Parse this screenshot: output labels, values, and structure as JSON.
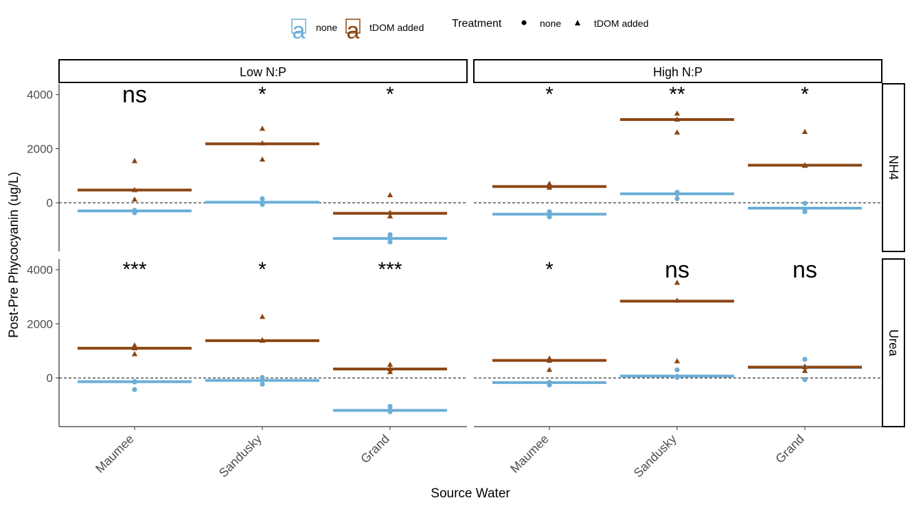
{
  "chart_data": {
    "type": "scatter",
    "xlabel": "Source Water",
    "ylabel": "Post-Pre Phycocyanin (ug/L)",
    "categories": [
      "Maumee",
      "Sandusky",
      "Grand"
    ],
    "yticks": [
      "0",
      "2000",
      "4000"
    ],
    "ylim": [
      -1800,
      4400
    ],
    "reference_line": 0,
    "col_facets": [
      "Low N:P",
      "High N:P"
    ],
    "row_facets": [
      "NH4",
      "Urea"
    ],
    "colors": {
      "none": "#6BAED6",
      "tDOM added": "#8B4513"
    },
    "legend": {
      "color_entries": [
        "none",
        "tDOM added"
      ],
      "color_key_glyph": "a",
      "shape_title": "Treatment",
      "shape_entries": [
        "none",
        "tDOM added"
      ],
      "placement": "top"
    },
    "panels": [
      {
        "col": "Low N:P",
        "row": "NH4",
        "groups": [
          {
            "category": "Maumee",
            "signif": "ns",
            "none": {
              "mean": -300,
              "points": [
                -280,
                -330,
                -370
              ]
            },
            "tdom": {
              "mean": 470,
              "points": [
                1540,
                470,
                120
              ]
            }
          },
          {
            "category": "Sandusky",
            "signif": "*",
            "none": {
              "mean": 20,
              "points": [
                150,
                -20,
                -60
              ]
            },
            "tdom": {
              "mean": 2180,
              "points": [
                2740,
                2200,
                1600
              ]
            }
          },
          {
            "category": "Grand",
            "signif": "*",
            "none": {
              "mean": -1320,
              "points": [
                -1180,
                -1300,
                -1450
              ]
            },
            "tdom": {
              "mean": -390,
              "points": [
                280,
                -370,
                -500
              ]
            }
          }
        ]
      },
      {
        "col": "High N:P",
        "row": "NH4",
        "groups": [
          {
            "category": "Maumee",
            "signif": "*",
            "none": {
              "mean": -420,
              "points": [
                -330,
                -440,
                -520
              ]
            },
            "tdom": {
              "mean": 600,
              "points": [
                700,
                620,
                560
              ]
            }
          },
          {
            "category": "Sandusky",
            "signif": "**",
            "none": {
              "mean": 330,
              "points": [
                390,
                330,
                150
              ]
            },
            "tdom": {
              "mean": 3080,
              "points": [
                3300,
                3080,
                2600
              ]
            }
          },
          {
            "category": "Grand",
            "signif": "*",
            "none": {
              "mean": -200,
              "points": [
                -20,
                -230,
                -330
              ]
            },
            "tdom": {
              "mean": 1390,
              "points": [
                2620,
                1390,
                1370
              ]
            }
          }
        ]
      },
      {
        "col": "Low N:P",
        "row": "Urea",
        "groups": [
          {
            "category": "Maumee",
            "signif": "***",
            "none": {
              "mean": -140,
              "points": [
                -130,
                -150,
                -430
              ]
            },
            "tdom": {
              "mean": 1100,
              "points": [
                1200,
                1100,
                880
              ]
            }
          },
          {
            "category": "Sandusky",
            "signif": "*",
            "none": {
              "mean": -90,
              "points": [
                20,
                -80,
                -230
              ]
            },
            "tdom": {
              "mean": 1380,
              "points": [
                2260,
                1400,
                1380
              ]
            }
          },
          {
            "category": "Grand",
            "signif": "***",
            "none": {
              "mean": -1200,
              "points": [
                -1050,
                -1180,
                -1250
              ]
            },
            "tdom": {
              "mean": 330,
              "points": [
                490,
                330,
                220
              ]
            }
          }
        ]
      },
      {
        "col": "High N:P",
        "row": "Urea",
        "groups": [
          {
            "category": "Maumee",
            "signif": "*",
            "none": {
              "mean": -170,
              "points": [
                -160,
                -210,
                -260
              ]
            },
            "tdom": {
              "mean": 650,
              "points": [
                720,
                640,
                300
              ]
            }
          },
          {
            "category": "Sandusky",
            "signif": "ns",
            "none": {
              "mean": 70,
              "points": [
                300,
                60,
                20
              ]
            },
            "tdom": {
              "mean": 2840,
              "points": [
                3520,
                2860,
                620
              ]
            }
          },
          {
            "category": "Grand",
            "signif": "ns",
            "none": {
              "mean": 390,
              "points": [
                690,
                400,
                -60
              ]
            },
            "tdom": {
              "mean": 400,
              "points": [
                420,
                400,
                260
              ]
            }
          }
        ]
      }
    ]
  }
}
